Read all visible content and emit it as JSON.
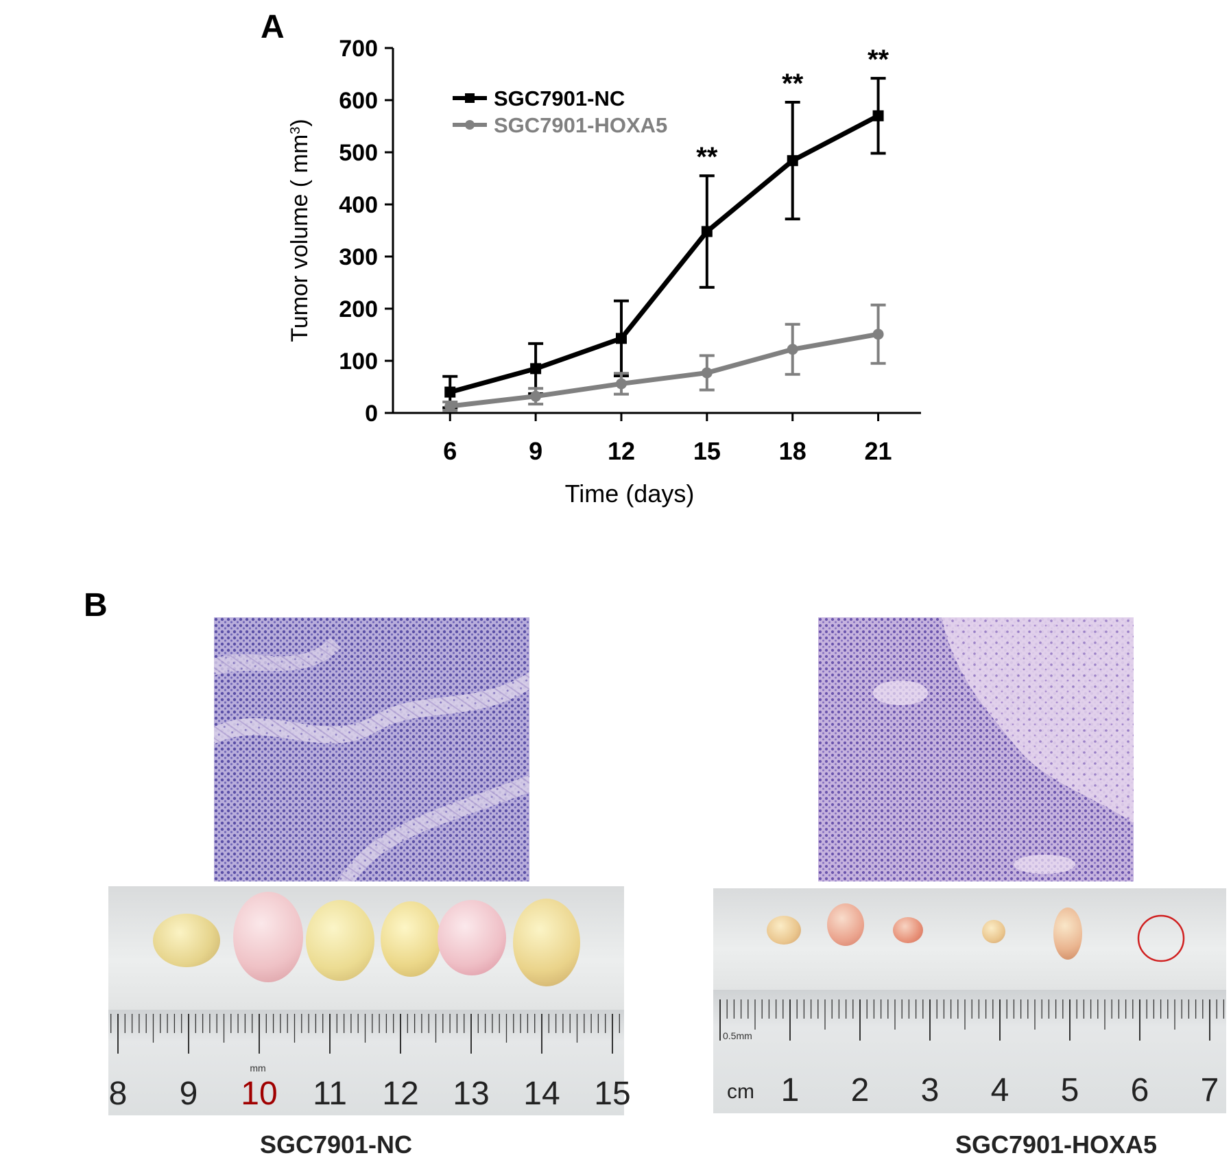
{
  "panel_a": {
    "label": "A"
  },
  "panel_b": {
    "label": "B"
  },
  "chart_data": {
    "type": "line",
    "xlabel": "Time (days)",
    "ylabel_main": "Tumor volume ( mm",
    "ylabel_sup": "3",
    "ylabel_close": ")",
    "x": [
      6,
      9,
      12,
      15,
      18,
      21
    ],
    "xlim": [
      4,
      22.5
    ],
    "ylim": [
      0,
      700
    ],
    "yticks": [
      0,
      100,
      200,
      300,
      400,
      500,
      600,
      700
    ],
    "grid": false,
    "legend_position": "top-left",
    "series": [
      {
        "name": "SGC7901-NC",
        "color": "#000000",
        "marker": "square",
        "values": [
          40,
          85,
          143,
          348,
          484,
          570
        ],
        "errors": [
          30,
          48,
          72,
          107,
          112,
          72
        ]
      },
      {
        "name": "SGC7901-HOXA5",
        "color": "#808080",
        "marker": "circle",
        "values": [
          13,
          32,
          56,
          77,
          122,
          151
        ],
        "errors": [
          8,
          15,
          20,
          33,
          48,
          56
        ]
      }
    ],
    "annotations": [
      {
        "x": 15,
        "text": "**"
      },
      {
        "x": 18,
        "text": "**"
      },
      {
        "x": 21,
        "text": "**"
      }
    ]
  },
  "photos": {
    "left": {
      "caption": "SGC7901-NC",
      "ruler_unit": "mm",
      "ruler_numbers": [
        "8",
        "9",
        "10",
        "11",
        "12",
        "13",
        "14",
        "15"
      ],
      "highlight_number": "10",
      "highlight_color": "#a00000"
    },
    "right": {
      "caption": "SGC7901-HOXA5",
      "ruler_unit": "0.5mm",
      "ruler_prefix": "cm",
      "ruler_numbers": [
        "1",
        "2",
        "3",
        "4",
        "5",
        "6",
        "7"
      ],
      "empty_marker_color": "#d02020"
    }
  }
}
